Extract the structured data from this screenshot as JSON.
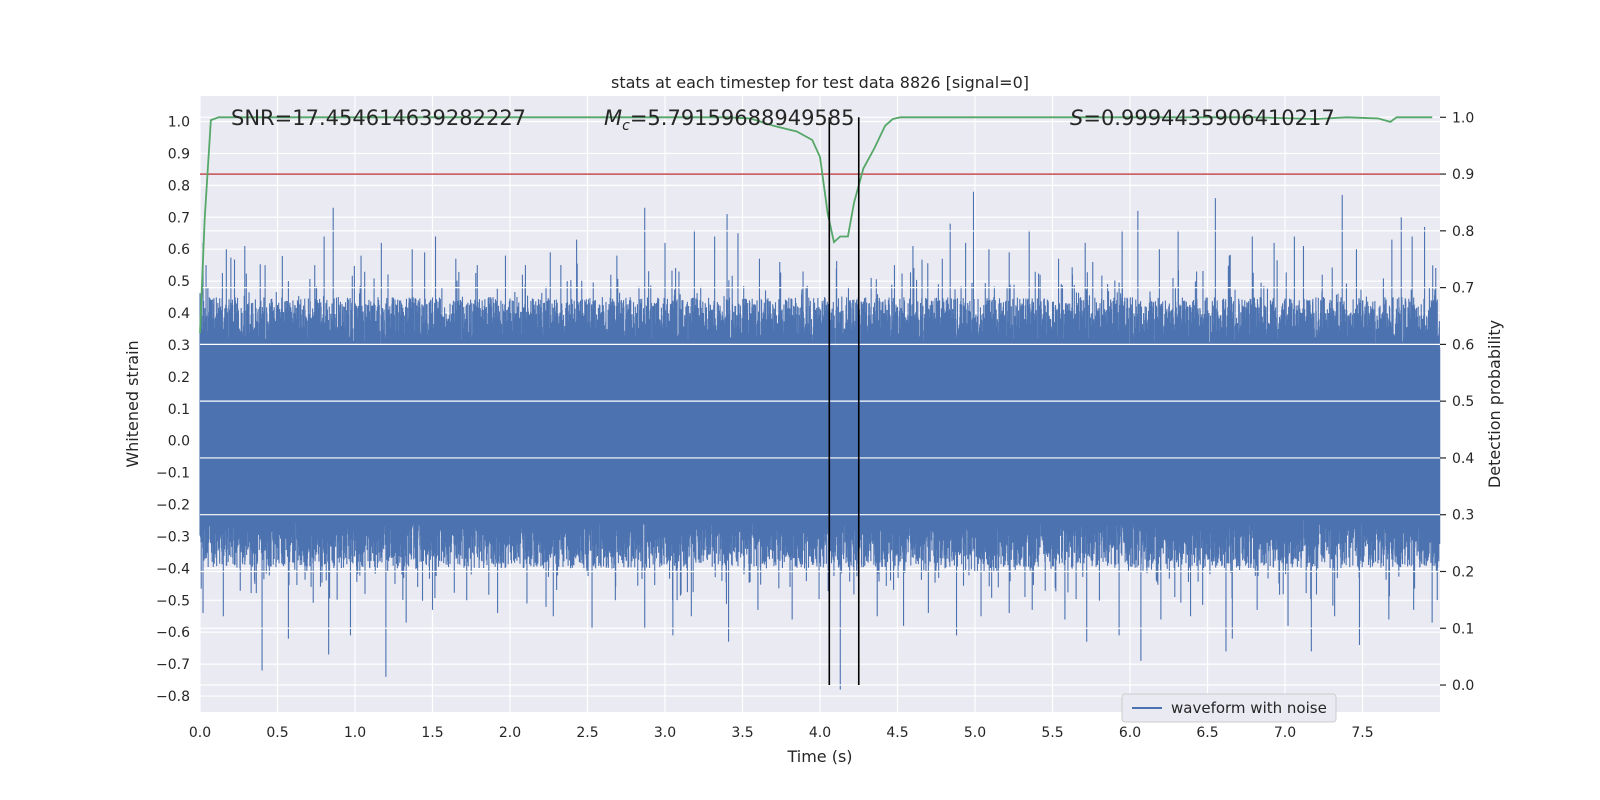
{
  "chart_data": {
    "type": "line",
    "title": "stats at each timestep for test data 8826 [signal=0]",
    "xlabel": "Time (s)",
    "ylabel_left": "Whitened strain",
    "ylabel_right": "Detection probability",
    "xlim": [
      0,
      8
    ],
    "ylim_left": [
      -0.85,
      1.08
    ],
    "ylim_right": [
      -0.0475,
      1.0375
    ],
    "x_ticks": [
      0.0,
      0.5,
      1.0,
      1.5,
      2.0,
      2.5,
      3.0,
      3.5,
      4.0,
      4.5,
      5.0,
      5.5,
      6.0,
      6.5,
      7.0,
      7.5
    ],
    "x_tick_labels": [
      "0.0",
      "0.5",
      "1.0",
      "1.5",
      "2.0",
      "2.5",
      "3.0",
      "3.5",
      "4.0",
      "4.5",
      "5.0",
      "5.5",
      "6.0",
      "6.5",
      "7.0",
      "7.5"
    ],
    "y_left_ticks": [
      -0.8,
      -0.7,
      -0.6,
      -0.5,
      -0.4,
      -0.3,
      -0.2,
      -0.1,
      0.0,
      0.1,
      0.2,
      0.3,
      0.4,
      0.5,
      0.6,
      0.7,
      0.8,
      0.9,
      1.0
    ],
    "y_left_tick_labels": [
      "−0.8",
      "−0.7",
      "−0.6",
      "−0.5",
      "−0.4",
      "−0.3",
      "−0.2",
      "−0.1",
      "0.0",
      "0.1",
      "0.2",
      "0.3",
      "0.4",
      "0.5",
      "0.6",
      "0.7",
      "0.8",
      "0.9",
      "1.0"
    ],
    "y_right_ticks": [
      0.0,
      0.1,
      0.2,
      0.3,
      0.4,
      0.5,
      0.6,
      0.7,
      0.8,
      0.9,
      1.0
    ],
    "y_right_tick_labels": [
      "0.0",
      "0.1",
      "0.2",
      "0.3",
      "0.4",
      "0.5",
      "0.6",
      "0.7",
      "0.8",
      "0.9",
      "1.0"
    ],
    "grid": true,
    "annotations": {
      "snr": "SNR=17.454614639282227",
      "mc_symbol": "M",
      "mc_sub": "c",
      "mc_value": "=5.79159688949585",
      "s_symbol": "S",
      "s_value": "=0.9994435906410217"
    },
    "legend": {
      "label": "waveform with noise",
      "placement": "lower-right"
    },
    "waveform": {
      "name": "waveform with noise",
      "color": "#4c72b0",
      "samples": 4096,
      "dense_band": [
        -0.24,
        0.29
      ],
      "peaks_up": [
        [
          0.02,
          0.62
        ],
        [
          0.04,
          0.55
        ],
        [
          0.17,
          0.6
        ],
        [
          0.29,
          0.61
        ],
        [
          0.42,
          0.55
        ],
        [
          0.57,
          0.5
        ],
        [
          0.74,
          0.55
        ],
        [
          0.8,
          0.64
        ],
        [
          0.86,
          0.73
        ],
        [
          1.04,
          0.58
        ],
        [
          1.17,
          0.62
        ],
        [
          1.37,
          0.6
        ],
        [
          1.45,
          0.59
        ],
        [
          1.52,
          0.64
        ],
        [
          1.65,
          0.57
        ],
        [
          1.79,
          0.55
        ],
        [
          1.97,
          0.58
        ],
        [
          2.1,
          0.55
        ],
        [
          2.26,
          0.59
        ],
        [
          2.43,
          0.63
        ],
        [
          2.65,
          0.52
        ],
        [
          2.69,
          0.58
        ],
        [
          2.87,
          0.73
        ],
        [
          3.0,
          0.62
        ],
        [
          3.09,
          0.53
        ],
        [
          3.19,
          0.66
        ],
        [
          3.32,
          0.64
        ],
        [
          3.4,
          0.71
        ],
        [
          3.47,
          0.65
        ],
        [
          3.61,
          0.57
        ],
        [
          3.74,
          0.56
        ],
        [
          3.89,
          0.53
        ],
        [
          4.03,
          0.45
        ],
        [
          4.33,
          0.51
        ],
        [
          4.48,
          0.55
        ],
        [
          4.6,
          0.61
        ],
        [
          4.79,
          0.57
        ],
        [
          4.84,
          0.68
        ],
        [
          4.94,
          0.62
        ],
        [
          4.99,
          0.78
        ],
        [
          5.09,
          0.6
        ],
        [
          5.22,
          0.59
        ],
        [
          5.35,
          0.66
        ],
        [
          5.42,
          0.52
        ],
        [
          5.54,
          0.57
        ],
        [
          5.71,
          0.62
        ],
        [
          5.76,
          0.56
        ],
        [
          5.95,
          0.66
        ],
        [
          6.05,
          0.72
        ],
        [
          6.19,
          0.6
        ],
        [
          6.31,
          0.66
        ],
        [
          6.43,
          0.53
        ],
        [
          6.55,
          0.76
        ],
        [
          6.64,
          0.58
        ],
        [
          6.79,
          0.64
        ],
        [
          6.93,
          0.62
        ],
        [
          7.06,
          0.64
        ],
        [
          7.12,
          0.61
        ],
        [
          7.24,
          0.52
        ],
        [
          7.37,
          0.77
        ],
        [
          7.46,
          0.6
        ],
        [
          7.69,
          0.63
        ],
        [
          7.75,
          0.7
        ],
        [
          7.82,
          0.64
        ],
        [
          7.9,
          0.67
        ]
      ],
      "peaks_down": [
        [
          0.02,
          -0.54
        ],
        [
          0.15,
          -0.55
        ],
        [
          0.4,
          -0.72
        ],
        [
          0.57,
          -0.62
        ],
        [
          0.83,
          -0.67
        ],
        [
          0.97,
          -0.61
        ],
        [
          1.2,
          -0.74
        ],
        [
          1.33,
          -0.57
        ],
        [
          1.5,
          -0.53
        ],
        [
          1.72,
          -0.5
        ],
        [
          1.92,
          -0.54
        ],
        [
          2.11,
          -0.51
        ],
        [
          2.28,
          -0.55
        ],
        [
          2.53,
          -0.59
        ],
        [
          2.68,
          -0.5
        ],
        [
          2.87,
          -0.59
        ],
        [
          3.05,
          -0.61
        ],
        [
          3.17,
          -0.55
        ],
        [
          3.41,
          -0.63
        ],
        [
          3.6,
          -0.53
        ],
        [
          3.82,
          -0.56
        ],
        [
          4.13,
          -0.78
        ],
        [
          4.37,
          -0.55
        ],
        [
          4.54,
          -0.58
        ],
        [
          4.7,
          -0.54
        ],
        [
          4.88,
          -0.61
        ],
        [
          5.04,
          -0.55
        ],
        [
          5.22,
          -0.54
        ],
        [
          5.37,
          -0.53
        ],
        [
          5.58,
          -0.56
        ],
        [
          5.72,
          -0.63
        ],
        [
          5.93,
          -0.61
        ],
        [
          6.07,
          -0.69
        ],
        [
          6.2,
          -0.56
        ],
        [
          6.39,
          -0.55
        ],
        [
          6.62,
          -0.66
        ],
        [
          6.66,
          -0.62
        ],
        [
          6.82,
          -0.53
        ],
        [
          7.02,
          -0.58
        ],
        [
          7.17,
          -0.66
        ],
        [
          7.32,
          -0.55
        ],
        [
          7.48,
          -0.64
        ],
        [
          7.67,
          -0.56
        ],
        [
          7.83,
          -0.53
        ],
        [
          7.95,
          -0.57
        ]
      ]
    },
    "detection_probability": {
      "color": "#55a868",
      "x": [
        0.0,
        0.03,
        0.07,
        0.12,
        0.2,
        0.5,
        1.0,
        2.0,
        2.8,
        3.0,
        3.4,
        3.55,
        3.7,
        3.85,
        3.95,
        4.0,
        4.05,
        4.09,
        4.13,
        4.18,
        4.22,
        4.28,
        4.35,
        4.42,
        4.47,
        4.52,
        4.6,
        4.8,
        5.2,
        6.0,
        6.8,
        7.2,
        7.4,
        7.6,
        7.68,
        7.72,
        7.78,
        7.85,
        7.95
      ],
      "y": [
        0.62,
        0.82,
        0.995,
        1.0,
        1.0,
        1.0,
        1.0,
        1.0,
        1.0,
        1.0,
        1.0,
        0.998,
        0.985,
        0.975,
        0.96,
        0.93,
        0.83,
        0.78,
        0.79,
        0.79,
        0.85,
        0.91,
        0.945,
        0.985,
        0.997,
        1.0,
        1.0,
        1.0,
        1.0,
        1.0,
        1.0,
        0.997,
        1.0,
        0.998,
        0.992,
        1.0,
        1.0,
        1.0,
        1.0
      ]
    },
    "threshold": {
      "value": 0.9,
      "axis": "right",
      "color": "#c44e52"
    },
    "vlines": {
      "x": [
        4.06,
        4.25
      ],
      "ymin": 0.0,
      "ymax": 1.0,
      "axis": "right",
      "color": "#000000"
    }
  }
}
